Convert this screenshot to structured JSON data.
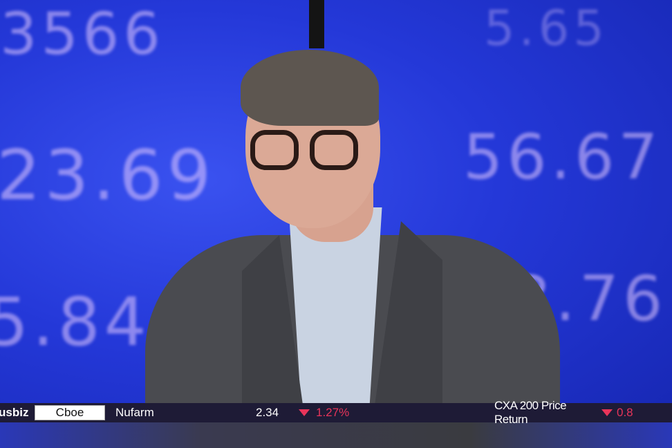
{
  "background_numbers": [
    "3566",
    "23.69",
    "5.84",
    "5.65",
    "56.67",
    "3.76"
  ],
  "ticker": {
    "brand": "usbiz",
    "sponsor_logo": "Cboe",
    "items": [
      {
        "name": "Nufarm",
        "price": "2.34",
        "direction": "down",
        "change": "1.27%"
      },
      {
        "name": "CXA 200 Price Return",
        "direction": "down",
        "change": "0.8"
      }
    ],
    "colors": {
      "down": "#e8345a",
      "bar": "#1e1b36"
    }
  }
}
